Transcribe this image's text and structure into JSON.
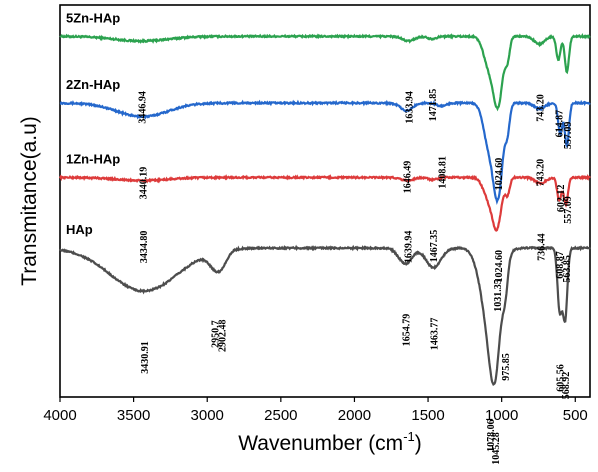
{
  "chart_data": {
    "type": "line",
    "xlabel": "Wavenumber (cm",
    "xlabel_sup": "-1",
    "xlabel_end": ")",
    "ylabel": "Transmitance(a.u)",
    "xlim": [
      4000,
      400
    ],
    "x_reversed": true,
    "x_ticks": [
      4000,
      3500,
      3000,
      2500,
      2000,
      1500,
      1000,
      500
    ],
    "y_ticks_shown": false,
    "grid": false,
    "series": [
      {
        "name": "5Zn-HAp",
        "color": "#2ca24f",
        "baseline": 0.92,
        "features": [
          {
            "x": 3446.94,
            "depth": 0.012,
            "width": 180
          },
          {
            "x": 1633.94,
            "depth": 0.012,
            "width": 40
          },
          {
            "x": 1471.85,
            "depth": 0.006,
            "width": 30
          },
          {
            "x": 1024.6,
            "depth": 0.17,
            "width": 32
          },
          {
            "x": 1090.0,
            "depth": 0.07,
            "width": 35
          },
          {
            "x": 960.0,
            "depth": 0.05,
            "width": 15
          },
          {
            "x": 743.2,
            "depth": 0.02,
            "width": 35
          },
          {
            "x": 614.87,
            "depth": 0.06,
            "width": 14
          },
          {
            "x": 557.09,
            "depth": 0.09,
            "width": 14
          }
        ],
        "peak_labels": [
          "3446.94",
          "1633.94",
          "1471.85",
          "1024.60",
          "743.20",
          "614.87",
          "557.09"
        ]
      },
      {
        "name": "2Zn-HAp",
        "color": "#2568cc",
        "baseline": 0.75,
        "features": [
          {
            "x": 3440.19,
            "depth": 0.035,
            "width": 170
          },
          {
            "x": 1646.49,
            "depth": 0.02,
            "width": 40
          },
          {
            "x": 1408.81,
            "depth": 0.008,
            "width": 30
          },
          {
            "x": 1024.6,
            "depth": 0.23,
            "width": 32
          },
          {
            "x": 1090.0,
            "depth": 0.1,
            "width": 35
          },
          {
            "x": 960.0,
            "depth": 0.06,
            "width": 15
          },
          {
            "x": 743.2,
            "depth": 0.015,
            "width": 35
          },
          {
            "x": 602.12,
            "depth": 0.08,
            "width": 14
          },
          {
            "x": 557.09,
            "depth": 0.11,
            "width": 14
          }
        ],
        "peak_labels": [
          "3440.19",
          "1646.49",
          "1408.81",
          "1024.60",
          "743.20",
          "602.12",
          "557.09"
        ]
      },
      {
        "name": "1Zn-HAp",
        "color": "#dd3b3b",
        "baseline": 0.56,
        "features": [
          {
            "x": 3434.8,
            "depth": 0.008,
            "width": 170
          },
          {
            "x": 1639.94,
            "depth": 0.008,
            "width": 40
          },
          {
            "x": 1467.35,
            "depth": 0.006,
            "width": 30
          },
          {
            "x": 1031.35,
            "depth": 0.12,
            "width": 30
          },
          {
            "x": 1090.0,
            "depth": 0.05,
            "width": 35
          },
          {
            "x": 960.0,
            "depth": 0.04,
            "width": 15
          },
          {
            "x": 736.44,
            "depth": 0.015,
            "width": 35
          },
          {
            "x": 608.87,
            "depth": 0.06,
            "width": 14
          },
          {
            "x": 563.85,
            "depth": 0.07,
            "width": 14
          }
        ],
        "peak_labels": [
          "3434.80",
          "1639.94",
          "1467.35",
          "1031.35",
          "736.44",
          "608.87",
          "563.85"
        ]
      },
      {
        "name": "HAp",
        "color": "#4d4d4d",
        "baseline": 0.38,
        "features": [
          {
            "x": 3430.91,
            "depth": 0.11,
            "width": 230
          },
          {
            "x": 2950.7,
            "depth": 0.03,
            "width": 45
          },
          {
            "x": 2902.48,
            "depth": 0.03,
            "width": 40
          },
          {
            "x": 1654.79,
            "depth": 0.04,
            "width": 45
          },
          {
            "x": 1463.77,
            "depth": 0.05,
            "width": 50
          },
          {
            "x": 1078.06,
            "depth": 0.2,
            "width": 60
          },
          {
            "x": 1045.28,
            "depth": 0.17,
            "width": 35
          },
          {
            "x": 975.85,
            "depth": 0.07,
            "width": 18
          },
          {
            "x": 605.56,
            "depth": 0.16,
            "width": 15
          },
          {
            "x": 568.92,
            "depth": 0.18,
            "width": 15
          }
        ],
        "peak_labels": [
          "3430.91",
          "2950.7",
          "2902.48",
          "1654.79",
          "1463.77",
          "1078.06",
          "1045.28",
          "975.85",
          "605.56",
          "568.92"
        ]
      }
    ]
  }
}
